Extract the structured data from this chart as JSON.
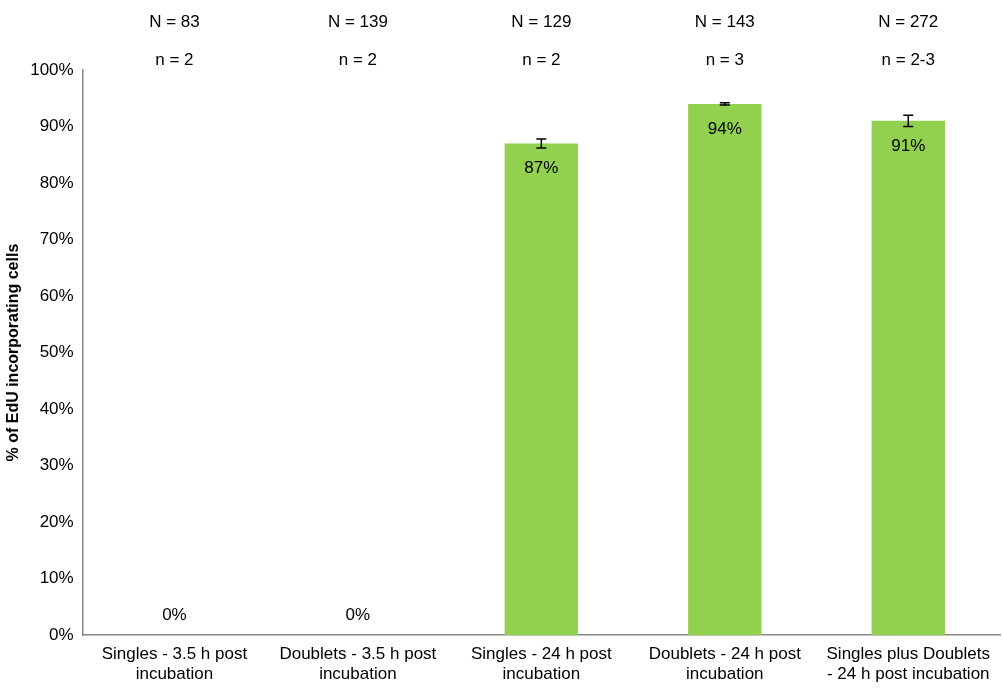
{
  "chart_data": {
    "type": "bar",
    "ylabel": "% of EdU incorporating cells",
    "categories": [
      "Singles - 3.5 h post incubation",
      "Doublets - 3.5 h post incubation",
      "Singles - 24 h post incubation",
      "Doublets - 24 h post incubation",
      "Singles plus Doublets - 24 h post incubation"
    ],
    "values": [
      0,
      0,
      87,
      94,
      91
    ],
    "errors": [
      null,
      null,
      0.8,
      0.2,
      1
    ],
    "value_labels": [
      "0%",
      "0%",
      "87%",
      "94%",
      "91%"
    ],
    "color": "#92d050",
    "ylim": [
      0,
      100
    ],
    "yticks": [
      {
        "value": 0,
        "label": "0%"
      },
      {
        "value": 10,
        "label": "10%"
      },
      {
        "value": 20,
        "label": "20%"
      },
      {
        "value": 30,
        "label": "30%"
      },
      {
        "value": 40,
        "label": "40%"
      },
      {
        "value": 50,
        "label": "50%"
      },
      {
        "value": 60,
        "label": "60%"
      },
      {
        "value": 70,
        "label": "70%"
      },
      {
        "value": 80,
        "label": "80%"
      },
      {
        "value": 90,
        "label": "90%"
      },
      {
        "value": 100,
        "label": "100%"
      }
    ],
    "grid": false,
    "legend": false,
    "annotations": [
      "N = 83",
      "N = 139",
      "N = 129",
      "N = 143",
      "N = 272",
      "n = 2",
      "n = 2",
      "n = 2",
      "n = 3",
      "n = 2-3"
    ]
  }
}
